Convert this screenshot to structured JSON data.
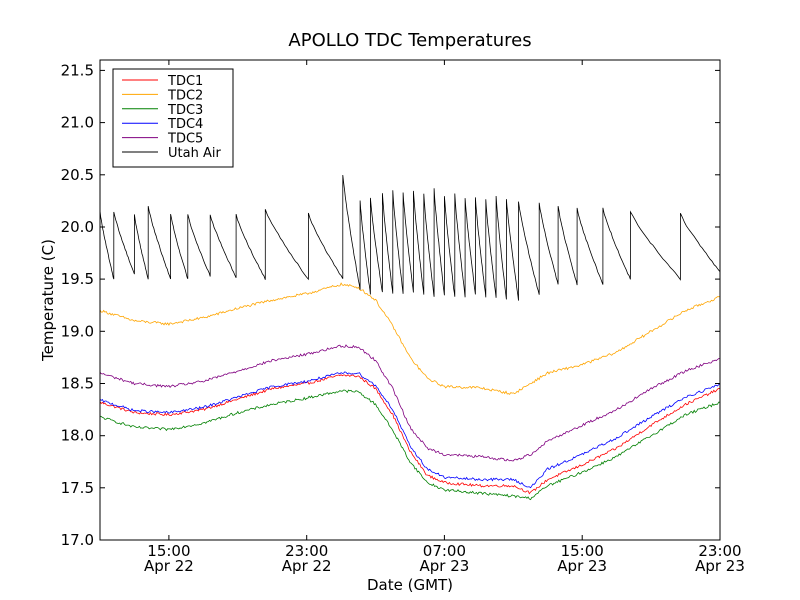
{
  "chart_data": {
    "type": "line",
    "title": "APOLLO TDC Temperatures",
    "xlabel": "Date (GMT)",
    "ylabel": "Temperature (C)",
    "x_unit": "hours since Apr 22 11:00 GMT",
    "xlim": [
      0,
      36
    ],
    "ylim": [
      17.0,
      21.6
    ],
    "y_ticks": [
      17.0,
      17.5,
      18.0,
      18.5,
      19.0,
      19.5,
      20.0,
      20.5,
      21.0,
      21.5
    ],
    "y_tick_labels": [
      "17.0",
      "17.5",
      "18.0",
      "18.5",
      "19.0",
      "19.5",
      "20.0",
      "20.5",
      "21.0",
      "21.5"
    ],
    "x_ticks": [
      {
        "x": 4,
        "time": "15:00",
        "date": "Apr 22"
      },
      {
        "x": 12,
        "time": "23:00",
        "date": "Apr 22"
      },
      {
        "x": 20,
        "time": "07:00",
        "date": "Apr 23"
      },
      {
        "x": 28,
        "time": "15:00",
        "date": "Apr 23"
      },
      {
        "x": 36,
        "time": "23:00",
        "date": "Apr 23"
      }
    ],
    "legend_position": "top-left",
    "series": [
      {
        "name": "TDC1",
        "color": "#ff0000",
        "points": [
          [
            0,
            18.32
          ],
          [
            2,
            18.22
          ],
          [
            4,
            18.2
          ],
          [
            6,
            18.25
          ],
          [
            8,
            18.35
          ],
          [
            10,
            18.45
          ],
          [
            12,
            18.5
          ],
          [
            14,
            18.58
          ],
          [
            15,
            18.57
          ],
          [
            16,
            18.45
          ],
          [
            17,
            18.2
          ],
          [
            18,
            17.85
          ],
          [
            19,
            17.62
          ],
          [
            20,
            17.55
          ],
          [
            22,
            17.52
          ],
          [
            24,
            17.52
          ],
          [
            25,
            17.45
          ],
          [
            26,
            17.58
          ],
          [
            28,
            17.72
          ],
          [
            30,
            17.88
          ],
          [
            32,
            18.1
          ],
          [
            34,
            18.3
          ],
          [
            36,
            18.45
          ]
        ]
      },
      {
        "name": "TDC2",
        "color": "#ffa500",
        "points": [
          [
            0,
            19.2
          ],
          [
            2,
            19.1
          ],
          [
            4,
            19.07
          ],
          [
            6,
            19.13
          ],
          [
            8,
            19.22
          ],
          [
            10,
            19.3
          ],
          [
            12,
            19.36
          ],
          [
            14,
            19.45
          ],
          [
            15,
            19.42
          ],
          [
            16,
            19.3
          ],
          [
            17,
            19.05
          ],
          [
            18,
            18.75
          ],
          [
            19,
            18.55
          ],
          [
            20,
            18.47
          ],
          [
            22,
            18.46
          ],
          [
            24,
            18.4
          ],
          [
            25,
            18.5
          ],
          [
            26,
            18.6
          ],
          [
            28,
            18.68
          ],
          [
            30,
            18.8
          ],
          [
            32,
            19.0
          ],
          [
            34,
            19.2
          ],
          [
            36,
            19.33
          ]
        ]
      },
      {
        "name": "TDC3",
        "color": "#008000",
        "points": [
          [
            0,
            18.18
          ],
          [
            2,
            18.08
          ],
          [
            4,
            18.06
          ],
          [
            6,
            18.12
          ],
          [
            8,
            18.22
          ],
          [
            10,
            18.3
          ],
          [
            12,
            18.36
          ],
          [
            14,
            18.43
          ],
          [
            15,
            18.42
          ],
          [
            16,
            18.3
          ],
          [
            17,
            18.05
          ],
          [
            18,
            17.75
          ],
          [
            19,
            17.55
          ],
          [
            20,
            17.48
          ],
          [
            22,
            17.45
          ],
          [
            24,
            17.42
          ],
          [
            25,
            17.4
          ],
          [
            26,
            17.52
          ],
          [
            28,
            17.65
          ],
          [
            30,
            17.8
          ],
          [
            32,
            18.0
          ],
          [
            34,
            18.2
          ],
          [
            36,
            18.32
          ]
        ]
      },
      {
        "name": "TDC4",
        "color": "#0000ff",
        "points": [
          [
            0,
            18.34
          ],
          [
            2,
            18.24
          ],
          [
            4,
            18.22
          ],
          [
            6,
            18.27
          ],
          [
            8,
            18.37
          ],
          [
            10,
            18.47
          ],
          [
            12,
            18.52
          ],
          [
            14,
            18.6
          ],
          [
            15,
            18.6
          ],
          [
            16,
            18.48
          ],
          [
            17,
            18.25
          ],
          [
            18,
            17.9
          ],
          [
            19,
            17.68
          ],
          [
            20,
            17.6
          ],
          [
            22,
            17.58
          ],
          [
            24,
            17.58
          ],
          [
            25,
            17.5
          ],
          [
            26,
            17.68
          ],
          [
            28,
            17.82
          ],
          [
            30,
            17.98
          ],
          [
            32,
            18.18
          ],
          [
            34,
            18.37
          ],
          [
            36,
            18.49
          ]
        ]
      },
      {
        "name": "TDC5",
        "color": "#800080",
        "points": [
          [
            0,
            18.6
          ],
          [
            2,
            18.5
          ],
          [
            4,
            18.47
          ],
          [
            6,
            18.52
          ],
          [
            8,
            18.62
          ],
          [
            10,
            18.72
          ],
          [
            12,
            18.78
          ],
          [
            14,
            18.86
          ],
          [
            15,
            18.85
          ],
          [
            16,
            18.72
          ],
          [
            17,
            18.45
          ],
          [
            18,
            18.08
          ],
          [
            19,
            17.88
          ],
          [
            20,
            17.82
          ],
          [
            22,
            17.8
          ],
          [
            24,
            17.76
          ],
          [
            25,
            17.82
          ],
          [
            26,
            17.95
          ],
          [
            28,
            18.1
          ],
          [
            30,
            18.25
          ],
          [
            32,
            18.45
          ],
          [
            34,
            18.62
          ],
          [
            36,
            18.74
          ]
        ]
      },
      {
        "name": "Utah Air",
        "color": "#000000",
        "style": "sawtooth",
        "cycles": [
          {
            "start": 0.0,
            "end": 0.8,
            "peak": 20.15,
            "trough": 19.5
          },
          {
            "start": 0.8,
            "end": 2.0,
            "peak": 20.15,
            "trough": 19.55
          },
          {
            "start": 2.0,
            "end": 2.8,
            "peak": 20.12,
            "trough": 19.5
          },
          {
            "start": 2.8,
            "end": 4.1,
            "peak": 20.2,
            "trough": 19.5
          },
          {
            "start": 4.1,
            "end": 5.1,
            "peak": 20.13,
            "trough": 19.5
          },
          {
            "start": 5.1,
            "end": 6.4,
            "peak": 20.12,
            "trough": 19.53
          },
          {
            "start": 6.4,
            "end": 7.9,
            "peak": 20.12,
            "trough": 19.52
          },
          {
            "start": 7.9,
            "end": 9.6,
            "peak": 20.12,
            "trough": 19.5
          },
          {
            "start": 9.6,
            "end": 12.1,
            "peak": 20.17,
            "trough": 19.5
          },
          {
            "start": 12.1,
            "end": 14.1,
            "peak": 20.13,
            "trough": 19.5
          },
          {
            "start": 14.1,
            "end": 15.1,
            "peak": 20.5,
            "trough": 19.4
          },
          {
            "start": 15.1,
            "end": 15.7,
            "peak": 20.25,
            "trough": 19.36
          },
          {
            "start": 15.7,
            "end": 16.4,
            "peak": 20.28,
            "trough": 19.37
          },
          {
            "start": 16.4,
            "end": 17.0,
            "peak": 20.32,
            "trough": 19.36
          },
          {
            "start": 17.0,
            "end": 17.6,
            "peak": 20.35,
            "trough": 19.36
          },
          {
            "start": 17.6,
            "end": 18.2,
            "peak": 20.33,
            "trough": 19.37
          },
          {
            "start": 18.2,
            "end": 18.8,
            "peak": 20.35,
            "trough": 19.35
          },
          {
            "start": 18.8,
            "end": 19.4,
            "peak": 20.32,
            "trough": 19.33
          },
          {
            "start": 19.4,
            "end": 20.0,
            "peak": 20.37,
            "trough": 19.34
          },
          {
            "start": 20.0,
            "end": 20.6,
            "peak": 20.3,
            "trough": 19.33
          },
          {
            "start": 20.6,
            "end": 21.2,
            "peak": 20.32,
            "trough": 19.33
          },
          {
            "start": 21.2,
            "end": 21.8,
            "peak": 20.28,
            "trough": 19.35
          },
          {
            "start": 21.8,
            "end": 22.4,
            "peak": 20.28,
            "trough": 19.33
          },
          {
            "start": 22.4,
            "end": 23.0,
            "peak": 20.27,
            "trough": 19.32
          },
          {
            "start": 23.0,
            "end": 23.6,
            "peak": 20.3,
            "trough": 19.3
          },
          {
            "start": 23.6,
            "end": 24.3,
            "peak": 20.27,
            "trough": 19.3
          },
          {
            "start": 24.3,
            "end": 25.5,
            "peak": 20.25,
            "trough": 19.35
          },
          {
            "start": 25.5,
            "end": 26.6,
            "peak": 20.23,
            "trough": 19.45
          },
          {
            "start": 26.6,
            "end": 27.7,
            "peak": 20.2,
            "trough": 19.45
          },
          {
            "start": 27.7,
            "end": 29.2,
            "peak": 20.18,
            "trough": 19.45
          },
          {
            "start": 29.2,
            "end": 30.8,
            "peak": 20.18,
            "trough": 19.5
          },
          {
            "start": 30.8,
            "end": 33.7,
            "peak": 20.15,
            "trough": 19.5
          },
          {
            "start": 33.7,
            "end": 36.0,
            "peak": 20.13,
            "trough": 19.57
          }
        ]
      }
    ]
  }
}
